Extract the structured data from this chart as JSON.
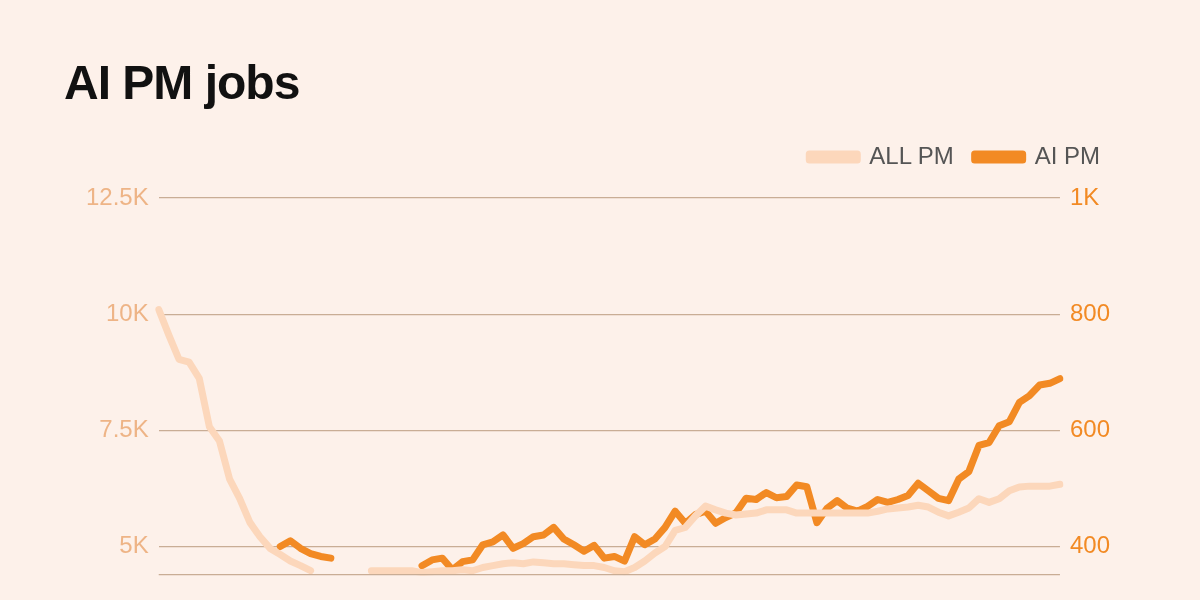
{
  "chart_data": {
    "type": "line",
    "title": "AI PM jobs",
    "categories": [
      null,
      null,
      null,
      null,
      null,
      null,
      null,
      null,
      null,
      null,
      null,
      null,
      null,
      null,
      null,
      null,
      null,
      null,
      null,
      null,
      null,
      null,
      null,
      null,
      null,
      null,
      null,
      null,
      null,
      null,
      null,
      null,
      null,
      null,
      null,
      null,
      null,
      null,
      null,
      null,
      null,
      null,
      null,
      null,
      null,
      null,
      null,
      null,
      null,
      null,
      null,
      null,
      null,
      null,
      null,
      null,
      null,
      null,
      null,
      null,
      null,
      null,
      null,
      null,
      null,
      null,
      null,
      null,
      null,
      null,
      null,
      null,
      null,
      null,
      null,
      null,
      null,
      null,
      null,
      null,
      null,
      null,
      null,
      null,
      null,
      null,
      null,
      null,
      null,
      null
    ],
    "series": [
      {
        "color": "#fcd7bb",
        "axis": "y",
        "values": [
          10100,
          9550,
          9030,
          8970,
          8620,
          7580,
          7270,
          6450,
          6030,
          5520,
          5210,
          4960,
          4830,
          4690,
          4590,
          4480,
          null,
          null,
          null,
          null,
          null,
          null,
          null,
          null,
          null,
          null,
          null,
          null,
          null,
          null,
          null,
          null,
          null,
          null,
          null,
          null,
          null,
          null,
          null,
          null,
          null,
          null,
          null,
          null,
          null,
          null,
          null,
          null,
          null,
          null,
          null,
          null,
          null,
          null,
          null,
          null,
          null,
          null,
          null,
          null,
          null,
          null,
          null,
          null,
          null,
          null,
          null,
          null,
          null,
          null,
          null,
          null,
          null,
          null,
          null,
          null,
          null,
          null,
          null,
          null,
          null,
          null,
          null,
          null,
          null,
          null,
          null,
          null,
          null,
          null
        ]
      },
      {
        "name": "ALL PM",
        "color": "#fcd7bb",
        "axis": "y",
        "values": [
          null,
          null,
          null,
          null,
          null,
          null,
          null,
          null,
          null,
          null,
          null,
          null,
          null,
          null,
          null,
          null,
          null,
          null,
          null,
          null,
          null,
          4480,
          4480,
          4480,
          4480,
          4480,
          4440,
          4460,
          4480,
          4480,
          4500,
          4480,
          4550,
          4590,
          4630,
          4650,
          4630,
          4670,
          4650,
          4630,
          4630,
          4610,
          4590,
          4590,
          4550,
          4480,
          4460,
          4550,
          4690,
          4860,
          5000,
          5350,
          5410,
          5660,
          5870,
          5790,
          5720,
          5680,
          5700,
          5720,
          5790,
          5790,
          5790,
          5720,
          5720,
          5720,
          5720,
          5720,
          5720,
          5720,
          5720,
          5760,
          5810,
          5830,
          5850,
          5890,
          5850,
          5740,
          5660,
          5740,
          5830,
          6030,
          5950,
          6030,
          6200,
          6280,
          6300,
          6300,
          6300,
          6340
        ]
      },
      {
        "color": "#f28a24",
        "axis": "y2",
        "values": [
          null,
          null,
          null,
          null,
          null,
          null,
          null,
          null,
          null,
          null,
          null,
          null,
          400,
          410,
          397,
          388,
          383,
          380,
          null,
          null,
          null,
          null,
          null,
          null,
          null,
          null,
          null,
          null,
          null,
          null,
          null,
          null,
          null,
          null,
          null,
          null,
          null,
          null,
          null,
          null,
          null,
          null,
          null,
          null,
          null,
          null,
          null,
          null,
          null,
          null,
          null,
          null,
          null,
          null,
          null,
          null,
          null,
          null,
          null,
          null,
          null,
          null,
          null,
          null,
          null,
          null,
          null,
          null,
          null,
          null,
          null,
          null,
          null,
          null,
          null,
          null,
          null,
          null,
          null,
          null,
          null,
          null,
          null,
          null,
          null,
          null,
          null,
          null,
          null,
          null
        ]
      },
      {
        "name": "AI PM",
        "color": "#f28a24",
        "axis": "y2",
        "values": [
          null,
          null,
          null,
          null,
          null,
          null,
          null,
          null,
          null,
          null,
          null,
          null,
          null,
          null,
          null,
          null,
          null,
          null,
          null,
          null,
          null,
          null,
          null,
          null,
          null,
          null,
          367,
          377,
          380,
          360,
          374,
          377,
          403,
          408,
          420,
          397,
          405,
          417,
          420,
          433,
          413,
          403,
          392,
          402,
          380,
          383,
          375,
          417,
          403,
          413,
          433,
          461,
          440,
          455,
          461,
          440,
          450,
          458,
          483,
          481,
          493,
          484,
          486,
          506,
          503,
          441,
          466,
          479,
          466,
          461,
          469,
          481,
          476,
          481,
          488,
          509,
          496,
          483,
          479,
          516,
          529,
          574,
          579,
          608,
          615,
          648,
          660,
          678,
          681,
          689
        ]
      }
    ],
    "ylim": [
      4375,
      12500
    ],
    "yticks": [
      {
        "value": 5000,
        "label": "5K"
      },
      {
        "value": 7500,
        "label": "7.5K"
      },
      {
        "value": 10000,
        "label": "10K"
      },
      {
        "value": 12500,
        "label": "12.5K"
      }
    ],
    "y2lim": [
      350,
      1000
    ],
    "y2ticks": [
      400,
      600,
      800,
      {
        "value": 1000,
        "label": "1K"
      }
    ],
    "grid": "y",
    "legend": "top right"
  }
}
